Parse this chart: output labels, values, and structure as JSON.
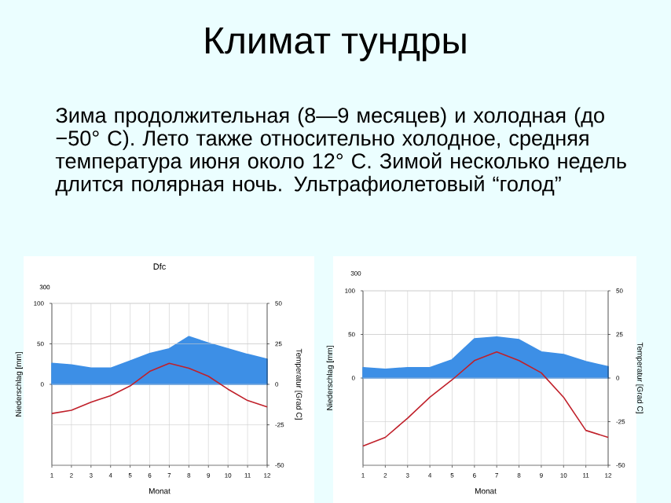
{
  "chart_data": [
    {
      "type": "other",
      "title": "Климат тундры",
      "annotations": [
        "Зима продолжительная (8—9 месяцев) и холодная (до −50° С). Лето также относительно холодное, средняя температура июня около 12° С. Зимой несколько недель длится полярная ночь. Ультрафиолетовый “голод”"
      ]
    },
    {
      "type": "line",
      "title": "Dfc",
      "xlabel": "Monat",
      "ylabel": "Niederschlag [mm]",
      "y2label": "Temperatur [Grad C]",
      "annotations": [
        "300"
      ],
      "grid": true,
      "x": [
        1,
        2,
        3,
        4,
        5,
        6,
        7,
        8,
        9,
        10,
        11,
        12
      ],
      "xlim": [
        1,
        12
      ],
      "xticks": [
        1,
        2,
        3,
        4,
        5,
        6,
        7,
        8,
        9,
        10,
        11,
        12
      ],
      "ylim": [
        -100,
        100
      ],
      "yticks": [
        0,
        50,
        100
      ],
      "y2lim": [
        -50,
        50
      ],
      "y2ticks": [
        -50,
        -25,
        0,
        25,
        50
      ],
      "series": [
        {
          "type": "area",
          "color": "#3d8fe6",
          "values": [
            26,
            24,
            20,
            20,
            29,
            38,
            44,
            59,
            51,
            44,
            37,
            31
          ]
        },
        {
          "type": "line",
          "axis": "y2",
          "color": "#c0202a",
          "values": [
            -18,
            -16,
            -11,
            -7,
            -1,
            8,
            13,
            10,
            5,
            -3,
            -10,
            -14
          ]
        }
      ]
    },
    {
      "type": "line",
      "xlabel": "Monat",
      "ylabel": "Niederschlag [mm]",
      "y2label": "Temperatur [Grad C]",
      "annotations": [
        "300"
      ],
      "grid": true,
      "x": [
        1,
        2,
        3,
        4,
        5,
        6,
        7,
        8,
        9,
        10,
        11,
        12
      ],
      "xlim": [
        1,
        12
      ],
      "xticks": [
        1,
        2,
        3,
        4,
        5,
        6,
        7,
        8,
        9,
        10,
        11,
        12
      ],
      "ylim": [
        -100,
        100
      ],
      "yticks": [
        0,
        50,
        100
      ],
      "y2lim": [
        -50,
        50
      ],
      "y2ticks": [
        -50,
        -25,
        0,
        25,
        50
      ],
      "series": [
        {
          "type": "area",
          "color": "#3d8fe6",
          "values": [
            12,
            10,
            12,
            12,
            21,
            45,
            47,
            44,
            30,
            27,
            19,
            13
          ]
        },
        {
          "type": "line",
          "axis": "y2",
          "color": "#c0202a",
          "values": [
            -39,
            -34,
            -23,
            -11,
            -1,
            10,
            15,
            10,
            3,
            -11,
            -30,
            -34
          ]
        }
      ]
    }
  ]
}
